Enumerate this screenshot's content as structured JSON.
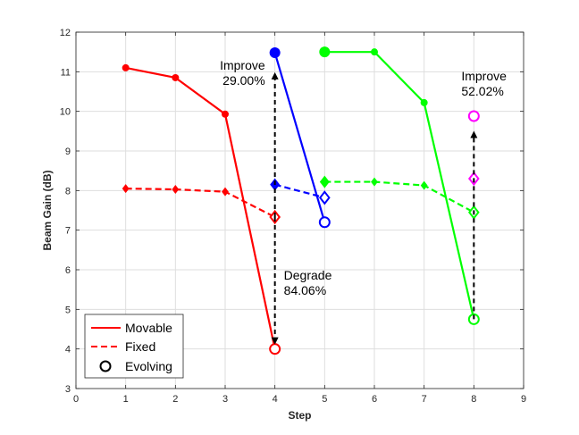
{
  "chart_data": {
    "type": "line",
    "title": "",
    "xlabel": "Step",
    "ylabel": "Beam Gain (dB)",
    "xlim": [
      0,
      9
    ],
    "ylim": [
      3,
      12
    ],
    "xticks": [
      "0",
      "1",
      "2",
      "3",
      "4",
      "5",
      "6",
      "7",
      "8",
      "9"
    ],
    "yticks": [
      "3",
      "4",
      "5",
      "6",
      "7",
      "8",
      "9",
      "10",
      "11",
      "12"
    ],
    "grid": true,
    "colors": {
      "red": "#ff0000",
      "blue": "#0000ff",
      "green": "#00ff00",
      "magenta": "#ff00ff",
      "annotation": "#000000"
    },
    "series": [
      {
        "name": "movable-red",
        "style": "solid",
        "color": "red",
        "marker": "dot",
        "points": [
          [
            1,
            11.1
          ],
          [
            2,
            10.85
          ],
          [
            3,
            9.93
          ],
          [
            4,
            4.0
          ]
        ]
      },
      {
        "name": "fixed-red",
        "style": "dashed",
        "color": "red",
        "marker": "diamond",
        "points": [
          [
            1,
            8.05
          ],
          [
            2,
            8.03
          ],
          [
            3,
            7.97
          ],
          [
            4,
            7.33
          ]
        ]
      },
      {
        "name": "movable-blue",
        "style": "solid",
        "color": "blue",
        "marker": "dot",
        "points": [
          [
            4,
            11.48
          ],
          [
            5,
            7.2
          ]
        ]
      },
      {
        "name": "fixed-blue",
        "style": "dashed",
        "color": "blue",
        "marker": "diamond",
        "points": [
          [
            4,
            8.15
          ],
          [
            5,
            7.82
          ]
        ]
      },
      {
        "name": "movable-green",
        "style": "solid",
        "color": "green",
        "marker": "dot",
        "points": [
          [
            5,
            11.5
          ],
          [
            6,
            11.5
          ],
          [
            7,
            10.22
          ],
          [
            8,
            4.75
          ]
        ]
      },
      {
        "name": "fixed-green",
        "style": "dashed",
        "color": "green",
        "marker": "diamond",
        "points": [
          [
            5,
            8.22
          ],
          [
            6,
            8.22
          ],
          [
            7,
            8.13
          ],
          [
            8,
            7.45
          ]
        ]
      }
    ],
    "evolving_markers": [
      {
        "color": "red",
        "shape": "circle",
        "x": 4,
        "y": 4.0
      },
      {
        "color": "red",
        "shape": "diamond",
        "x": 4,
        "y": 7.33
      },
      {
        "color": "blue",
        "shape": "circle",
        "x": 5,
        "y": 7.2
      },
      {
        "color": "blue",
        "shape": "diamond",
        "x": 5,
        "y": 7.82
      },
      {
        "color": "green",
        "shape": "circle",
        "x": 8,
        "y": 4.75
      },
      {
        "color": "green",
        "shape": "diamond",
        "x": 8,
        "y": 7.45
      },
      {
        "color": "magenta",
        "shape": "circle",
        "x": 8,
        "y": 9.88
      },
      {
        "color": "magenta",
        "shape": "diamond",
        "x": 8,
        "y": 8.3
      }
    ],
    "start_markers": [
      {
        "color": "blue",
        "shape": "dot",
        "x": 4,
        "y": 11.48
      },
      {
        "color": "blue",
        "shape": "diamond",
        "x": 4,
        "y": 8.15
      },
      {
        "color": "green",
        "shape": "dot",
        "x": 5,
        "y": 11.5
      },
      {
        "color": "green",
        "shape": "diamond",
        "x": 5,
        "y": 8.22
      }
    ],
    "arrows": [
      {
        "x": 4,
        "from": 7.33,
        "to": 4.0,
        "label": "Degrade\n84.06%"
      },
      {
        "x": 4,
        "from": 7.33,
        "to": 11.1,
        "label": "Improve\n29.00%"
      },
      {
        "x": 8,
        "from": 4.75,
        "to": 9.62,
        "label": "Improve\n52.02%"
      }
    ],
    "legend": {
      "placement": "bottom-left",
      "entries": [
        "Movable",
        "Fixed",
        "Evolving"
      ]
    }
  }
}
